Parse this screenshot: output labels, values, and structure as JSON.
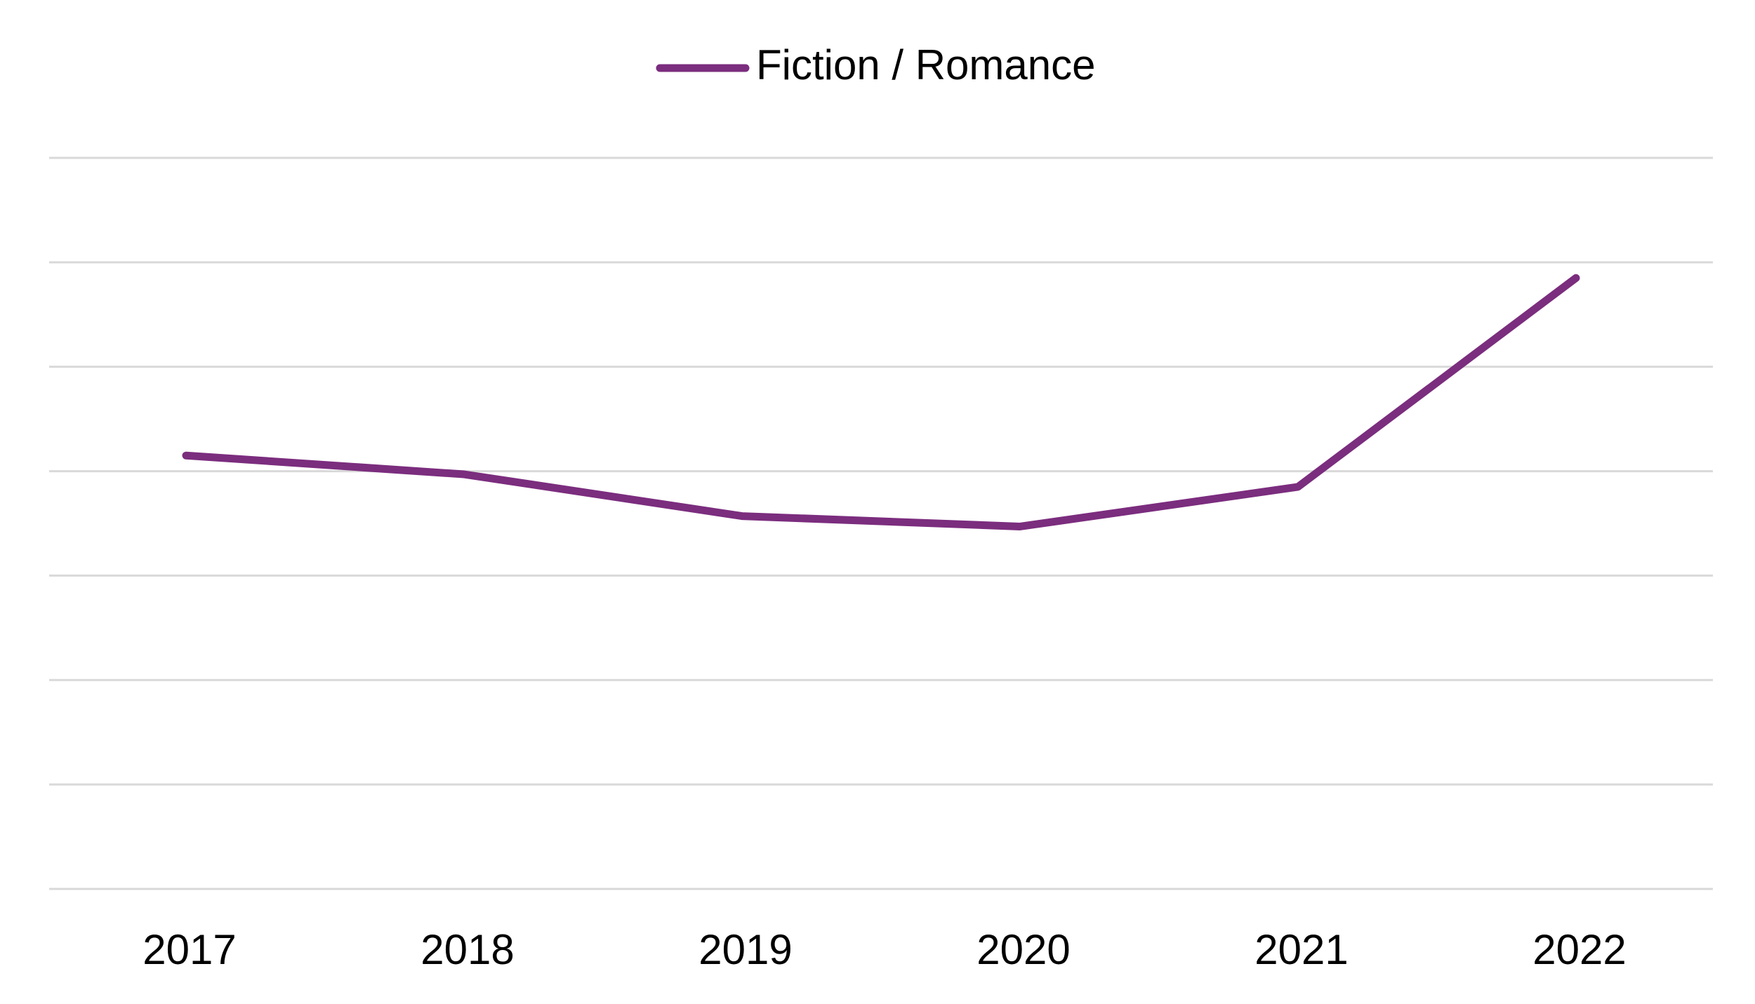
{
  "chart_data": {
    "type": "line",
    "categories": [
      "2017",
      "2018",
      "2019",
      "2020",
      "2021",
      "2022"
    ],
    "series": [
      {
        "name": "Fiction / Romance",
        "values": [
          4.15,
          3.97,
          3.57,
          3.47,
          3.85,
          5.85
        ],
        "color": "#7b2d7e"
      }
    ],
    "ylim": [
      0,
      7
    ],
    "gridlines": [
      0,
      1,
      2,
      3,
      4,
      5,
      6,
      7
    ],
    "grid": true,
    "y_tick_labels_visible": false,
    "legend": "top-center"
  }
}
